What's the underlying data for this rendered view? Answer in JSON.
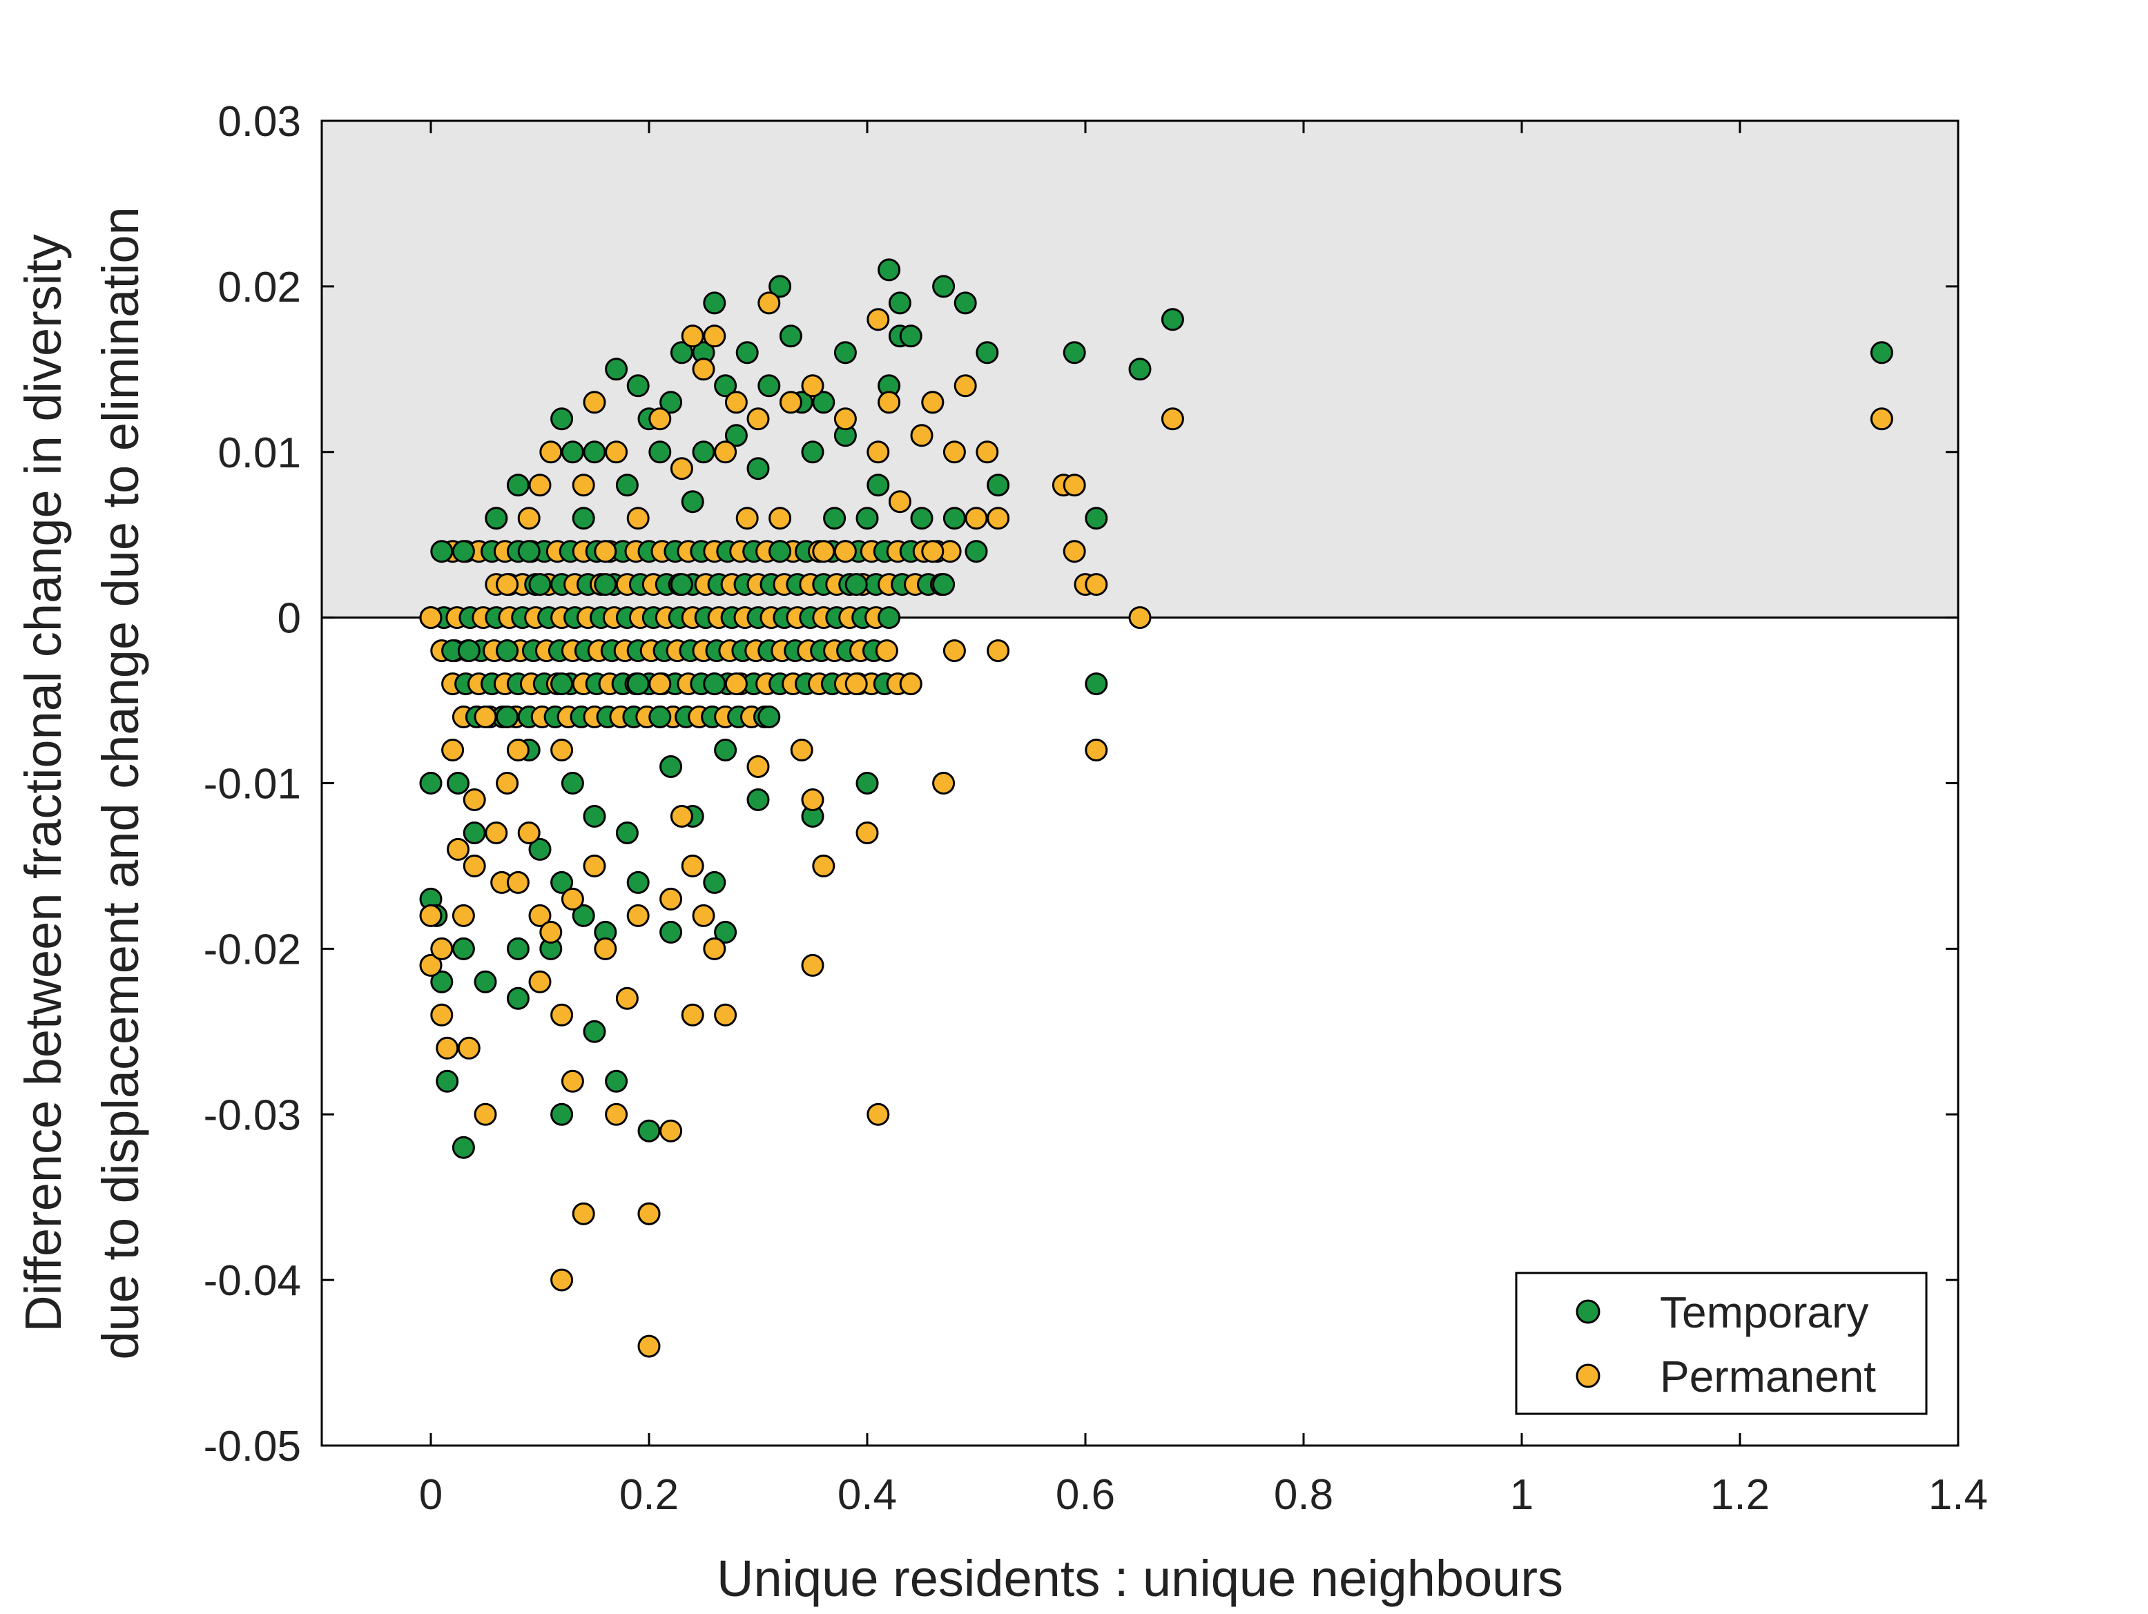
{
  "chart_data": {
    "type": "scatter",
    "title": "",
    "xlabel": "Unique residents : unique neighbours",
    "ylabel_line1": "Difference between fractional change in diversity",
    "ylabel_line2": "due to displacement and change due to elimination",
    "xlim": [
      -0.1,
      1.4
    ],
    "ylim": [
      -0.05,
      0.03
    ],
    "x_ticks": [
      0,
      0.2,
      0.4,
      0.6,
      0.8,
      1,
      1.2,
      1.4
    ],
    "x_tick_labels": [
      "0",
      "0.2",
      "0.4",
      "0.6",
      "0.8",
      "1",
      "1.2",
      "1.4"
    ],
    "y_ticks": [
      0.03,
      0.02,
      0.01,
      0,
      -0.01,
      -0.02,
      -0.03,
      -0.04,
      -0.05
    ],
    "y_tick_labels": [
      "0.03",
      "0.02",
      "0.01",
      "0",
      "-0.01",
      "-0.02",
      "-0.03",
      "-0.04",
      "-0.05"
    ],
    "shaded_region": {
      "y_from": 0,
      "y_to": 0.03,
      "color": "#e6e6e6"
    },
    "zero_line": true,
    "grid": false,
    "legend_position": "bottom-right",
    "series": [
      {
        "name": "Temporary",
        "color": "#1a9641",
        "points": [
          [
            0.0,
            -0.01
          ],
          [
            0.0,
            -0.017
          ],
          [
            0.005,
            -0.018
          ],
          [
            0.01,
            0.004
          ],
          [
            0.01,
            -0.022
          ],
          [
            0.015,
            -0.028
          ],
          [
            0.02,
            -0.002
          ],
          [
            0.025,
            -0.01
          ],
          [
            0.03,
            0.004
          ],
          [
            0.03,
            -0.02
          ],
          [
            0.03,
            -0.032
          ],
          [
            0.035,
            -0.002
          ],
          [
            0.04,
            -0.013
          ],
          [
            0.05,
            -0.022
          ],
          [
            0.06,
            0.006
          ],
          [
            0.06,
            0.006
          ],
          [
            0.07,
            -0.002
          ],
          [
            0.07,
            -0.006
          ],
          [
            0.08,
            0.008
          ],
          [
            0.08,
            -0.02
          ],
          [
            0.08,
            -0.023
          ],
          [
            0.09,
            0.004
          ],
          [
            0.09,
            -0.008
          ],
          [
            0.1,
            0.002
          ],
          [
            0.1,
            -0.014
          ],
          [
            0.11,
            -0.02
          ],
          [
            0.12,
            0.012
          ],
          [
            0.12,
            -0.004
          ],
          [
            0.12,
            -0.016
          ],
          [
            0.12,
            -0.03
          ],
          [
            0.13,
            0.01
          ],
          [
            0.13,
            -0.01
          ],
          [
            0.14,
            0.006
          ],
          [
            0.14,
            -0.018
          ],
          [
            0.15,
            0.01
          ],
          [
            0.15,
            -0.012
          ],
          [
            0.15,
            -0.025
          ],
          [
            0.16,
            0.002
          ],
          [
            0.16,
            -0.019
          ],
          [
            0.17,
            0.015
          ],
          [
            0.17,
            -0.028
          ],
          [
            0.18,
            0.008
          ],
          [
            0.18,
            -0.013
          ],
          [
            0.19,
            0.014
          ],
          [
            0.19,
            -0.004
          ],
          [
            0.19,
            -0.016
          ],
          [
            0.2,
            0.012
          ],
          [
            0.2,
            -0.036
          ],
          [
            0.2,
            -0.031
          ],
          [
            0.21,
            0.01
          ],
          [
            0.21,
            -0.006
          ],
          [
            0.22,
            0.013
          ],
          [
            0.22,
            -0.009
          ],
          [
            0.22,
            -0.019
          ],
          [
            0.23,
            0.016
          ],
          [
            0.23,
            0.002
          ],
          [
            0.24,
            0.007
          ],
          [
            0.24,
            -0.012
          ],
          [
            0.25,
            0.016
          ],
          [
            0.25,
            0.01
          ],
          [
            0.26,
            0.019
          ],
          [
            0.26,
            -0.004
          ],
          [
            0.26,
            -0.016
          ],
          [
            0.27,
            0.014
          ],
          [
            0.27,
            -0.008
          ],
          [
            0.27,
            -0.019
          ],
          [
            0.28,
            0.011
          ],
          [
            0.29,
            0.016
          ],
          [
            0.3,
            0.009
          ],
          [
            0.3,
            -0.011
          ],
          [
            0.31,
            0.014
          ],
          [
            0.31,
            -0.006
          ],
          [
            0.32,
            0.02
          ],
          [
            0.32,
            0.004
          ],
          [
            0.33,
            0.017
          ],
          [
            0.34,
            0.013
          ],
          [
            0.35,
            0.01
          ],
          [
            0.35,
            -0.012
          ],
          [
            0.36,
            0.013
          ],
          [
            0.37,
            0.006
          ],
          [
            0.38,
            0.016
          ],
          [
            0.38,
            0.011
          ],
          [
            0.39,
            0.002
          ],
          [
            0.4,
            -0.01
          ],
          [
            0.4,
            0.006
          ],
          [
            0.41,
            0.008
          ],
          [
            0.42,
            0.021
          ],
          [
            0.42,
            0.014
          ],
          [
            0.43,
            0.019
          ],
          [
            0.43,
            0.017
          ],
          [
            0.44,
            0.017
          ],
          [
            0.45,
            0.006
          ],
          [
            0.46,
            0.013
          ],
          [
            0.47,
            0.02
          ],
          [
            0.47,
            0.002
          ],
          [
            0.48,
            0.006
          ],
          [
            0.49,
            0.019
          ],
          [
            0.5,
            0.004
          ],
          [
            0.51,
            0.016
          ],
          [
            0.52,
            0.008
          ],
          [
            0.59,
            0.016
          ],
          [
            0.61,
            0.006
          ],
          [
            0.61,
            -0.004
          ],
          [
            0.65,
            0.015
          ],
          [
            0.68,
            0.018
          ],
          [
            1.33,
            0.016
          ]
        ]
      },
      {
        "name": "Permanent",
        "color": "#f7b32b",
        "points": [
          [
            0.0,
            0.0
          ],
          [
            0.0,
            -0.018
          ],
          [
            0.0,
            -0.021
          ],
          [
            0.01,
            -0.02
          ],
          [
            0.01,
            -0.024
          ],
          [
            0.015,
            -0.026
          ],
          [
            0.02,
            -0.008
          ],
          [
            0.025,
            -0.014
          ],
          [
            0.03,
            -0.018
          ],
          [
            0.035,
            -0.026
          ],
          [
            0.04,
            -0.011
          ],
          [
            0.04,
            -0.015
          ],
          [
            0.05,
            -0.03
          ],
          [
            0.05,
            -0.006
          ],
          [
            0.06,
            -0.013
          ],
          [
            0.065,
            -0.016
          ],
          [
            0.07,
            0.002
          ],
          [
            0.07,
            -0.01
          ],
          [
            0.08,
            -0.016
          ],
          [
            0.08,
            -0.008
          ],
          [
            0.09,
            0.006
          ],
          [
            0.09,
            -0.013
          ],
          [
            0.1,
            0.008
          ],
          [
            0.1,
            -0.018
          ],
          [
            0.1,
            -0.022
          ],
          [
            0.11,
            0.01
          ],
          [
            0.11,
            -0.019
          ],
          [
            0.12,
            -0.024
          ],
          [
            0.12,
            -0.04
          ],
          [
            0.12,
            -0.008
          ],
          [
            0.13,
            -0.028
          ],
          [
            0.13,
            -0.017
          ],
          [
            0.14,
            0.008
          ],
          [
            0.14,
            -0.036
          ],
          [
            0.15,
            0.013
          ],
          [
            0.15,
            -0.015
          ],
          [
            0.16,
            -0.02
          ],
          [
            0.16,
            0.004
          ],
          [
            0.17,
            0.01
          ],
          [
            0.17,
            -0.03
          ],
          [
            0.18,
            -0.023
          ],
          [
            0.19,
            -0.018
          ],
          [
            0.19,
            0.006
          ],
          [
            0.2,
            -0.044
          ],
          [
            0.2,
            -0.036
          ],
          [
            0.21,
            0.012
          ],
          [
            0.21,
            -0.004
          ],
          [
            0.22,
            -0.017
          ],
          [
            0.22,
            -0.031
          ],
          [
            0.23,
            0.009
          ],
          [
            0.23,
            -0.012
          ],
          [
            0.24,
            0.017
          ],
          [
            0.24,
            -0.015
          ],
          [
            0.24,
            -0.024
          ],
          [
            0.25,
            0.015
          ],
          [
            0.25,
            -0.018
          ],
          [
            0.26,
            0.017
          ],
          [
            0.26,
            -0.02
          ],
          [
            0.27,
            0.01
          ],
          [
            0.27,
            -0.024
          ],
          [
            0.28,
            0.013
          ],
          [
            0.28,
            -0.004
          ],
          [
            0.29,
            0.006
          ],
          [
            0.3,
            0.012
          ],
          [
            0.3,
            -0.009
          ],
          [
            0.31,
            0.019
          ],
          [
            0.32,
            0.006
          ],
          [
            0.33,
            0.013
          ],
          [
            0.34,
            -0.008
          ],
          [
            0.35,
            0.014
          ],
          [
            0.35,
            -0.021
          ],
          [
            0.35,
            -0.011
          ],
          [
            0.36,
            0.004
          ],
          [
            0.36,
            -0.015
          ],
          [
            0.38,
            0.012
          ],
          [
            0.38,
            0.004
          ],
          [
            0.39,
            -0.004
          ],
          [
            0.4,
            -0.013
          ],
          [
            0.41,
            0.018
          ],
          [
            0.41,
            0.01
          ],
          [
            0.41,
            -0.03
          ],
          [
            0.42,
            0.013
          ],
          [
            0.43,
            0.007
          ],
          [
            0.44,
            -0.004
          ],
          [
            0.45,
            0.011
          ],
          [
            0.46,
            0.013
          ],
          [
            0.46,
            0.004
          ],
          [
            0.47,
            -0.01
          ],
          [
            0.48,
            0.01
          ],
          [
            0.48,
            -0.002
          ],
          [
            0.49,
            0.014
          ],
          [
            0.5,
            0.006
          ],
          [
            0.51,
            0.01
          ],
          [
            0.52,
            0.006
          ],
          [
            0.52,
            -0.002
          ],
          [
            0.58,
            0.008
          ],
          [
            0.59,
            0.008
          ],
          [
            0.59,
            0.004
          ],
          [
            0.6,
            0.002
          ],
          [
            0.61,
            0.002
          ],
          [
            0.61,
            -0.008
          ],
          [
            0.65,
            0.0
          ],
          [
            0.68,
            0.012
          ],
          [
            1.33,
            0.012
          ]
        ]
      }
    ],
    "band_x_ranges": [
      {
        "y": 0.004,
        "x_from": 0.02,
        "x_to": 0.48
      },
      {
        "y": 0.002,
        "x_from": 0.06,
        "x_to": 0.47
      },
      {
        "y": 0.0,
        "x_from": 0.0,
        "x_to": 0.42
      },
      {
        "y": -0.002,
        "x_from": 0.01,
        "x_to": 0.42
      },
      {
        "y": -0.004,
        "x_from": 0.02,
        "x_to": 0.44
      },
      {
        "y": -0.006,
        "x_from": 0.03,
        "x_to": 0.31
      }
    ],
    "legend": {
      "entries": [
        {
          "label": "Temporary",
          "color": "#1a9641"
        },
        {
          "label": "Permanent",
          "color": "#f7b32b"
        }
      ]
    }
  }
}
